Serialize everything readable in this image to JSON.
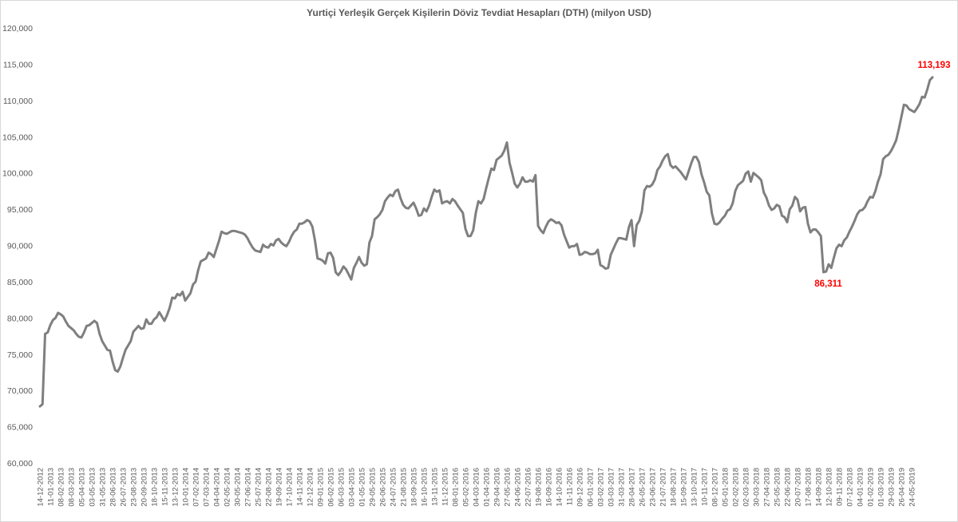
{
  "chart_data": {
    "type": "line",
    "title": "Yurtiçi Yerleşik Gerçek Kişilerin Döviz Tevdiat Hesapları (DTH) (milyon USD)",
    "xlabel": "",
    "ylabel": "",
    "ylim": [
      60000,
      120000
    ],
    "yticks": [
      "60,000",
      "65,000",
      "70,000",
      "75,000",
      "80,000",
      "85,000",
      "90,000",
      "95,000",
      "100,000",
      "105,000",
      "110,000",
      "115,000",
      "120,000"
    ],
    "xticks": [
      "14-12-2012",
      "11-01-2013",
      "08-02-2013",
      "08-03-2013",
      "05-04-2013",
      "03-05-2013",
      "31-05-2013",
      "28-06-2013",
      "26-07-2013",
      "23-08-2013",
      "20-09-2013",
      "18-10-2013",
      "15-11-2013",
      "13-12-2013",
      "10-01-2014",
      "07-02-2014",
      "07-03-2014",
      "04-04-2014",
      "02-05-2014",
      "30-05-2014",
      "27-06-2014",
      "25-07-2014",
      "22-08-2014",
      "19-09-2014",
      "17-10-2014",
      "14-11-2014",
      "12-12-2014",
      "09-01-2015",
      "06-02-2015",
      "06-03-2015",
      "03-04-2015",
      "01-05-2015",
      "29-05-2015",
      "26-06-2015",
      "24-07-2015",
      "21-08-2015",
      "18-09-2015",
      "16-10-2015",
      "13-11-2015",
      "11-12-2015",
      "08-01-2016",
      "05-02-2016",
      "04-03-2016",
      "01-04-2016",
      "29-04-2016",
      "27-05-2016",
      "24-06-2016",
      "22-07-2016",
      "19-08-2016",
      "16-09-2016",
      "14-10-2016",
      "11-11-2016",
      "09-12-2016",
      "06-01-2017",
      "03-02-2017",
      "03-03-2017",
      "31-03-2017",
      "28-04-2017",
      "26-05-2017",
      "23-06-2017",
      "21-07-2017",
      "18-08-2017",
      "15-09-2017",
      "13-10-2017",
      "10-11-2017",
      "08-12-2017",
      "05-01-2018",
      "02-02-2018",
      "02-03-2018",
      "30-03-2018",
      "27-04-2018",
      "25-05-2018",
      "22-06-2018",
      "20-07-2018",
      "17-08-2018",
      "14-09-2018",
      "12-10-2018",
      "09-11-2018",
      "07-12-2018",
      "04-01-2019",
      "01-02-2019",
      "01-03-2019",
      "29-03-2019",
      "26-04-2019",
      "24-05-2019"
    ],
    "series": [
      {
        "color": "#7f7f7f",
        "values": [
          67800,
          68100,
          77800,
          78000,
          79000,
          79700,
          80000,
          80700,
          80500,
          80200,
          79500,
          78900,
          78600,
          78300,
          77800,
          77400,
          77300,
          78000,
          78900,
          79000,
          79300,
          79600,
          79300,
          77800,
          76800,
          76200,
          75600,
          75500,
          74000,
          72800,
          72600,
          73300,
          74500,
          75600,
          76200,
          76800,
          78100,
          78500,
          78900,
          78500,
          78600,
          79800,
          79200,
          79200,
          79800,
          80100,
          80800,
          80200,
          79600,
          80400,
          81400,
          82800,
          82700,
          83300,
          83100,
          83600,
          82400,
          82900,
          83400,
          84600,
          85000,
          86600,
          87800,
          88000,
          88200,
          89000,
          88800,
          88400,
          89500,
          90600,
          91900,
          91700,
          91600,
          91800,
          92000,
          92000,
          91900,
          91800,
          91700,
          91500,
          91000,
          90300,
          89700,
          89300,
          89200,
          89100,
          90100,
          89800,
          89700,
          90200,
          90000,
          90700,
          90900,
          90400,
          90100,
          89900,
          90500,
          91300,
          91900,
          92200,
          93000,
          93000,
          93200,
          93500,
          93300,
          92600,
          90700,
          88200,
          88100,
          87900,
          87500,
          88900,
          89000,
          88300,
          86300,
          85900,
          86400,
          87100,
          86700,
          86000,
          85300,
          86900,
          87600,
          88400,
          87600,
          87200,
          87400,
          90400,
          91300,
          93600,
          93900,
          94300,
          94900,
          96100,
          96600,
          97000,
          96800,
          97500,
          97700,
          96500,
          95600,
          95200,
          95100,
          95500,
          95900,
          95100,
          94100,
          94200,
          95100,
          94700,
          95500,
          96700,
          97700,
          97400,
          97600,
          95800,
          96000,
          96100,
          95800,
          96400,
          96100,
          95500,
          95000,
          94500,
          92300,
          91300,
          91300,
          92100,
          94500,
          96100,
          95800,
          96400,
          97900,
          99300,
          100600,
          100400,
          101800,
          102100,
          102400,
          103100,
          104200,
          101400,
          100000,
          98500,
          98000,
          98500,
          99400,
          98800,
          98800,
          99000,
          98800,
          99700,
          92700,
          92100,
          91700,
          92600,
          93300,
          93600,
          93400,
          93100,
          93200,
          92800,
          91500,
          90600,
          89700,
          89900,
          89900,
          90200,
          88700,
          88800,
          89100,
          89000,
          88800,
          88800,
          88900,
          89400,
          87300,
          87100,
          86800,
          86900,
          88700,
          89500,
          90300,
          91000,
          91000,
          90900,
          90800,
          92500,
          93500,
          89900,
          92800,
          93400,
          94700,
          97600,
          98200,
          98100,
          98400,
          99100,
          100400,
          100900,
          101700,
          102300,
          102600,
          101100,
          100700,
          100900,
          100500,
          100100,
          99600,
          99100,
          100200,
          101300,
          102200,
          102200,
          101500,
          99800,
          98700,
          97400,
          96900,
          94400,
          93000,
          92900,
          93200,
          93700,
          94100,
          94800,
          95000,
          95800,
          97500,
          98300,
          98600,
          98900,
          99900,
          100200,
          98800,
          100000,
          99700,
          99400,
          99000,
          97300,
          96600,
          95500,
          94900,
          95100,
          95600,
          95400,
          94100,
          93900,
          93200,
          95000,
          95500,
          96700,
          96300,
          94700,
          95200,
          95300,
          93000,
          91800,
          92200,
          92200,
          91800,
          91300,
          86311,
          86400,
          87400,
          86900,
          88300,
          89600,
          90100,
          89900,
          90700,
          91100,
          91900,
          92600,
          93400,
          94300,
          94800,
          94900,
          95300,
          96100,
          96700,
          96600,
          97500,
          98800,
          99800,
          101900,
          102300,
          102500,
          103000,
          103700,
          104500,
          106000,
          107700,
          109400,
          109300,
          108800,
          108600,
          108400,
          108900,
          109500,
          110500,
          110400,
          111500,
          112800,
          113193
        ]
      }
    ],
    "annotations": [
      {
        "text": "113,193",
        "value": 113193,
        "color": "#ff0000"
      },
      {
        "text": "86,311",
        "value": 86311,
        "color": "#ff0000"
      }
    ],
    "grid": false,
    "legend": "none"
  }
}
